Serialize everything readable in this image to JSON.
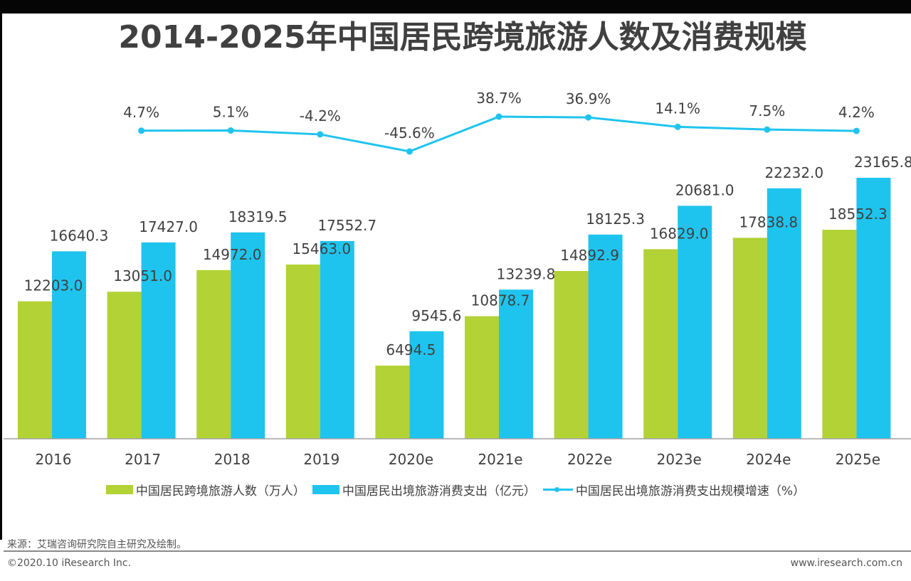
{
  "title": "2014-2025年中国居民跨境旅游人数及消费规模",
  "chart_data": {
    "type": "bar",
    "title": "2014-2025年中国居民跨境旅游人数及消费规模",
    "categories": [
      "2016",
      "2017",
      "2018",
      "2019",
      "2020e",
      "2021e",
      "2022e",
      "2023e",
      "2024e",
      "2025e"
    ],
    "series": [
      {
        "name": "中国居民跨境旅游人数（万人）",
        "type": "bar",
        "color": "#b2d235",
        "values": [
          12203.0,
          13051.0,
          14972.0,
          15463.0,
          6494.5,
          10878.7,
          14892.9,
          16829.0,
          17838.8,
          18552.3
        ],
        "labels": [
          "12203.0",
          "13051.0",
          "14972.0",
          "15463.0",
          "6494.5",
          "10878.7",
          "14892.9",
          "16829.0",
          "17838.8",
          "18552.3"
        ]
      },
      {
        "name": "中国居民出境旅游消费支出（亿元）",
        "type": "bar",
        "color": "#1fc4ee",
        "values": [
          16640.3,
          17427.0,
          18319.5,
          17552.7,
          9545.6,
          13239.8,
          18125.3,
          20681.0,
          22232.0,
          23165.8
        ],
        "labels": [
          "16640.3",
          "17427.0",
          "18319.5",
          "17552.7",
          "9545.6",
          "13239.8",
          "18125.3",
          "20681.0",
          "22232.0",
          "23165.8"
        ]
      },
      {
        "name": "中国居民出境旅游消费支出规模增速（%）",
        "type": "line",
        "color": "#1fc4ee",
        "axis": "secondary",
        "x": [
          "2017",
          "2018",
          "2019",
          "2020e",
          "2021e",
          "2022e",
          "2023e",
          "2024e",
          "2025e"
        ],
        "values": [
          4.7,
          5.1,
          -4.2,
          -45.6,
          38.7,
          36.9,
          14.1,
          7.5,
          4.2
        ],
        "labels": [
          "4.7%",
          "5.1%",
          "-4.2%",
          "-45.6%",
          "38.7%",
          "36.9%",
          "14.1%",
          "7.5%",
          "4.2%"
        ]
      }
    ],
    "ylim": [
      0,
      23165.8
    ],
    "grid": false,
    "legend": "bottom"
  },
  "footer": {
    "source": "来源：艾瑞咨询研究院自主研究及绘制。",
    "copyright": "©2020.10 iResearch Inc.",
    "website": "www.iresearch.com.cn"
  }
}
